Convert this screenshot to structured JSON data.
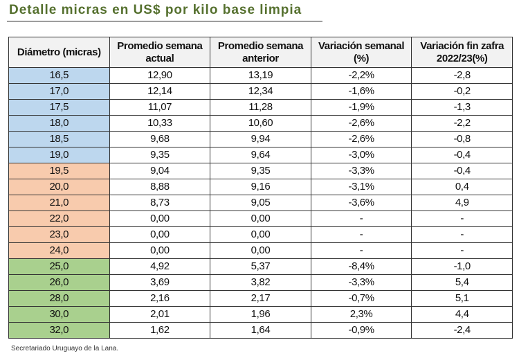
{
  "title": "Detalle micras en US$ por kilo base limpia",
  "colors": {
    "blue": "#bdd7ee",
    "orange": "#f8cbad",
    "green": "#a9d08e"
  },
  "headers": [
    "Diámetro (micras)",
    "Promedio semana actual",
    "Promedio semana anterior",
    "Variación semanal (%)",
    "Variación fin zafra 2022/23(%)"
  ],
  "rows": [
    {
      "group": "blue",
      "cells": [
        "16,5",
        "12,90",
        "13,19",
        "-2,2%",
        "-2,8"
      ]
    },
    {
      "group": "blue",
      "cells": [
        "17,0",
        "12,14",
        "12,34",
        "-1,6%",
        "-0,2"
      ]
    },
    {
      "group": "blue",
      "cells": [
        "17,5",
        "11,07",
        "11,28",
        "-1,9%",
        "-1,3"
      ]
    },
    {
      "group": "blue",
      "cells": [
        "18,0",
        "10,33",
        "10,60",
        "-2,6%",
        "-2,2"
      ]
    },
    {
      "group": "blue",
      "cells": [
        "18,5",
        "9,68",
        "9,94",
        "-2,6%",
        "-0,8"
      ]
    },
    {
      "group": "blue",
      "cells": [
        "19,0",
        "9,35",
        "9,64",
        "-3,0%",
        "-0,4"
      ]
    },
    {
      "group": "orange",
      "cells": [
        "19,5",
        "9,04",
        "9,35",
        "-3,3%",
        "-0,4"
      ]
    },
    {
      "group": "orange",
      "cells": [
        "20,0",
        "8,88",
        "9,16",
        "-3,1%",
        "0,4"
      ]
    },
    {
      "group": "orange",
      "cells": [
        "21,0",
        "8,73",
        "9,05",
        "-3,6%",
        "4,9"
      ]
    },
    {
      "group": "orange",
      "cells": [
        "22,0",
        "0,00",
        "0,00",
        "-",
        "-"
      ]
    },
    {
      "group": "orange",
      "cells": [
        "23,0",
        "0,00",
        "0,00",
        "-",
        "-"
      ]
    },
    {
      "group": "orange",
      "cells": [
        "24,0",
        "0,00",
        "0,00",
        "-",
        "-"
      ]
    },
    {
      "group": "green",
      "cells": [
        "25,0",
        "4,92",
        "5,37",
        "-8,4%",
        "-1,0"
      ]
    },
    {
      "group": "green",
      "cells": [
        "26,0",
        "3,69",
        "3,82",
        "-3,3%",
        "5,4"
      ]
    },
    {
      "group": "green",
      "cells": [
        "28,0",
        "2,16",
        "2,17",
        "-0,7%",
        "5,1"
      ]
    },
    {
      "group": "green",
      "cells": [
        "30,0",
        "2,01",
        "1,96",
        "2,3%",
        "4,4"
      ]
    },
    {
      "group": "green",
      "cells": [
        "32,0",
        "1,62",
        "1,64",
        "-0,9%",
        "-2,4"
      ]
    }
  ],
  "footer": "Secretariado Uruguayo de la Lana."
}
